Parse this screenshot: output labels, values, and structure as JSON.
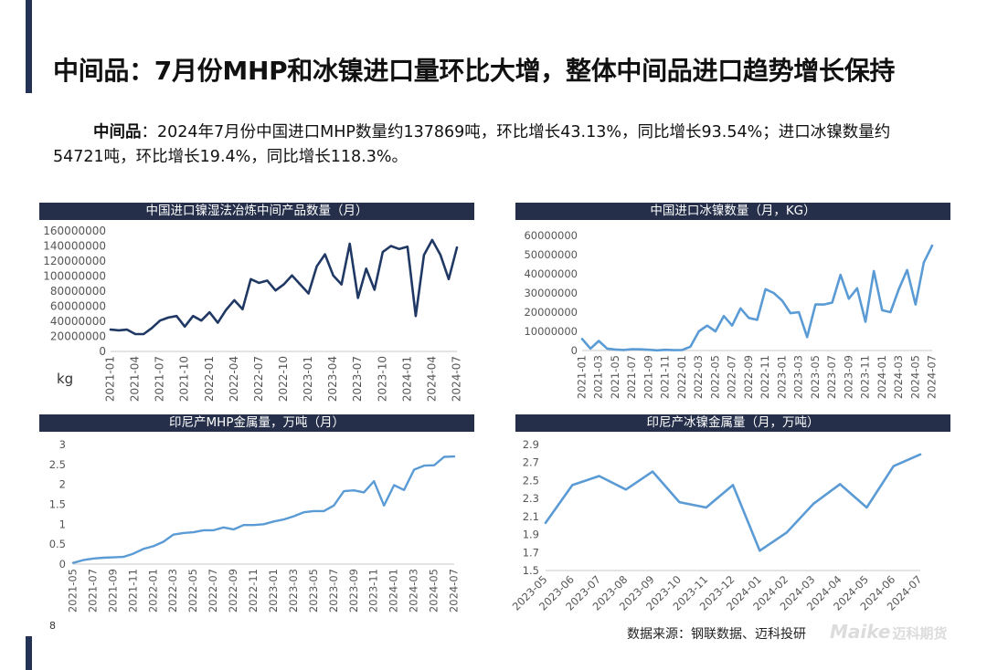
{
  "title": "中间品：7月份MHP和冰镍进口量环比大增，整体中间品进口趋势增长保持",
  "summary": {
    "lead": "中间品",
    "text": "：2024年7月份中国进口MHP数量约137869吨，环比增长43.13%，同比增长93.54%；进口冰镍数量约54721吨，环比增长19.4%，同比增长118.3%。"
  },
  "colors": {
    "dark_series": "#203864",
    "light_series": "#5b9bd5",
    "header_bg": "#252f4a"
  },
  "chart_data": [
    {
      "id": "mhp_import",
      "type": "line",
      "title": "中国进口镍湿法冶炼中间产品数量（月）",
      "unit_label": "kg",
      "ylim": [
        0,
        160000000
      ],
      "yticks": [
        0,
        20000000,
        40000000,
        60000000,
        80000000,
        100000000,
        120000000,
        140000000,
        160000000
      ],
      "ytick_labels": [
        "0",
        "20000000",
        "40000000",
        "60000000",
        "80000000",
        "100000000",
        "120000000",
        "140000000",
        "160000000"
      ],
      "xtick_labels": [
        "2021-01",
        "2021-04",
        "2021-07",
        "2021-10",
        "2022-01",
        "2022-04",
        "2022-07",
        "2022-10",
        "2023-01",
        "2023-04",
        "2023-07",
        "2023-10",
        "2024-01",
        "2024-04",
        "2024-07"
      ],
      "color": "#203864",
      "series": [
        {
          "name": "中国进口镍湿法冶炼中间产品数量",
          "values": [
            29000000,
            28000000,
            29000000,
            23000000,
            23000000,
            31000000,
            41000000,
            45000000,
            47000000,
            33000000,
            47000000,
            41000000,
            52000000,
            38000000,
            55000000,
            68000000,
            56000000,
            96000000,
            91000000,
            94000000,
            81000000,
            89000000,
            101000000,
            89000000,
            77000000,
            113000000,
            129000000,
            101000000,
            89000000,
            143000000,
            71000000,
            110000000,
            82000000,
            132000000,
            140000000,
            136000000,
            139000000,
            47000000,
            128000000,
            148000000,
            128000000,
            96000000,
            138000000
          ]
        }
      ]
    },
    {
      "id": "nickel_matte_import",
      "type": "line",
      "title": "中国进口冰镍数量（月，KG）",
      "ylim": [
        0,
        60000000
      ],
      "yticks": [
        0,
        10000000,
        20000000,
        30000000,
        40000000,
        50000000,
        60000000
      ],
      "ytick_labels": [
        "0",
        "10000000",
        "20000000",
        "30000000",
        "40000000",
        "50000000",
        "60000000"
      ],
      "xtick_labels": [
        "2021-01",
        "2021-03",
        "2021-05",
        "2021-07",
        "2021-09",
        "2021-11",
        "2022-01",
        "2022-03",
        "2022-05",
        "2022-07",
        "2022-09",
        "2022-11",
        "2023-01",
        "2023-03",
        "2023-05",
        "2023-07",
        "2023-09",
        "2023-11",
        "2024-01",
        "2024-03",
        "2024-05",
        "2024-07"
      ],
      "color": "#5b9bd5",
      "series": [
        {
          "name": "中国进口冰镍数量",
          "values": [
            6000000,
            1000000,
            5000000,
            1000000,
            500000,
            300000,
            700000,
            600000,
            400000,
            100000,
            400000,
            200000,
            300000,
            2000000,
            10000000,
            13000000,
            10000000,
            18000000,
            13000000,
            22000000,
            17000000,
            16000000,
            32000000,
            30000000,
            26000000,
            19500000,
            20000000,
            7000000,
            24000000,
            24000000,
            25000000,
            39500000,
            27000000,
            32500000,
            15000000,
            41500000,
            21000000,
            20000000,
            32000000,
            42000000,
            24000000,
            46000000,
            54721000
          ]
        }
      ]
    },
    {
      "id": "indonesia_mhp",
      "type": "line",
      "title": "印尼产MHP金属量，万吨（月）",
      "ylim": [
        0,
        3
      ],
      "yticks": [
        0,
        0.5,
        1,
        1.5,
        2,
        2.5,
        3
      ],
      "ytick_labels": [
        "0",
        "0.5",
        "1",
        "1.5",
        "2",
        "2.5",
        "3"
      ],
      "xtick_labels": [
        "2021-05",
        "2021-07",
        "2021-09",
        "2021-11",
        "2022-01",
        "2022-03",
        "2022-05",
        "2022-07",
        "2022-09",
        "2022-11",
        "2023-01",
        "2023-03",
        "2023-05",
        "2023-07",
        "2023-09",
        "2023-11",
        "2024-01",
        "2024-03",
        "2024-05",
        "2024-07"
      ],
      "color": "#5b9bd5",
      "series": [
        {
          "name": "印尼产MHP金属量",
          "values": [
            0.03,
            0.1,
            0.14,
            0.16,
            0.17,
            0.18,
            0.26,
            0.38,
            0.45,
            0.56,
            0.74,
            0.78,
            0.8,
            0.85,
            0.85,
            0.92,
            0.87,
            0.98,
            0.98,
            1.0,
            1.07,
            1.12,
            1.2,
            1.3,
            1.33,
            1.33,
            1.47,
            1.83,
            1.85,
            1.8,
            2.08,
            1.47,
            1.98,
            1.86,
            2.37,
            2.47,
            2.48,
            2.69,
            2.7
          ]
        }
      ]
    },
    {
      "id": "indonesia_nickel_matte",
      "type": "line",
      "title": "印尼产冰镍金属量（月，万吨）",
      "ylim": [
        1.5,
        2.9
      ],
      "yticks": [
        1.5,
        1.7,
        1.9,
        2.1,
        2.3,
        2.5,
        2.7,
        2.9
      ],
      "ytick_labels": [
        "1.5",
        "1.7",
        "1.9",
        "2.1",
        "2.3",
        "2.5",
        "2.7",
        "2.9"
      ],
      "xtick_labels": [
        "2023-05",
        "2023-06",
        "2023-07",
        "2023-08",
        "2023-09",
        "2023-10",
        "2023-11",
        "2023-12",
        "2024-01",
        "2024-02",
        "2024-03",
        "2024-04",
        "2024-05",
        "2024-06",
        "2024-07"
      ],
      "color": "#5b9bd5",
      "series": [
        {
          "name": "印尼产冰镍金属量",
          "values": [
            2.03,
            2.45,
            2.55,
            2.4,
            2.6,
            2.26,
            2.2,
            2.45,
            1.72,
            1.92,
            2.24,
            2.46,
            2.2,
            2.66,
            2.79
          ]
        }
      ]
    }
  ],
  "page_number": "8",
  "source": "数据来源：钢联数据、迈科投研",
  "brand": {
    "latin": "Maike",
    "cn": "迈科期货"
  }
}
